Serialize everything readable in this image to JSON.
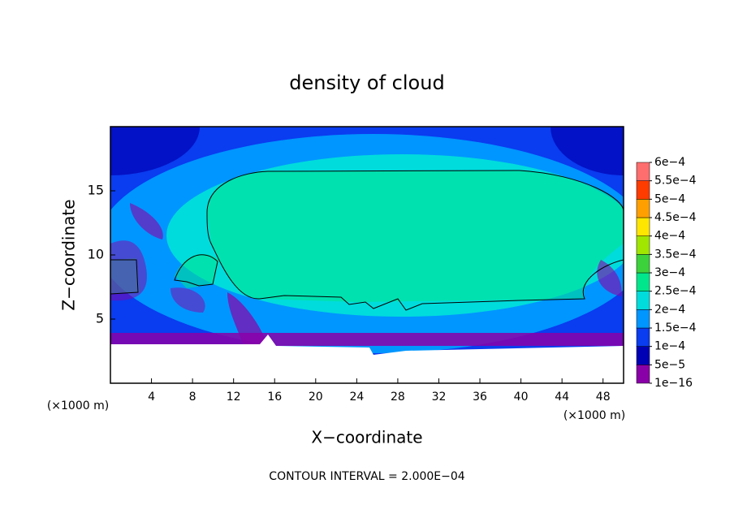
{
  "chart_data": {
    "type": "contour",
    "title": "density of cloud",
    "xlabel": "X−coordinate",
    "ylabel": "Z−coordinate",
    "x_unit": "(×1000 m)",
    "y_unit": "(×1000 m)",
    "annotation": "CONTOUR INTERVAL = 2.000E−04",
    "xlim": [
      0,
      50
    ],
    "ylim": [
      0,
      20
    ],
    "xticks": [
      4,
      8,
      12,
      16,
      20,
      24,
      28,
      32,
      36,
      40,
      44,
      48
    ],
    "yticks": [
      5,
      10,
      15
    ],
    "colorbar": {
      "ticks": [
        {
          "value": 1e-16,
          "label": "1e−16"
        },
        {
          "value": 5e-05,
          "label": "5e−5"
        },
        {
          "value": 0.0001,
          "label": "1e−4"
        },
        {
          "value": 0.00015,
          "label": "1.5e−4"
        },
        {
          "value": 0.0002,
          "label": "2e−4"
        },
        {
          "value": 0.00025,
          "label": "2.5e−4"
        },
        {
          "value": 0.0003,
          "label": "3e−4"
        },
        {
          "value": 0.00035,
          "label": "3.5e−4"
        },
        {
          "value": 0.0004,
          "label": "4e−4"
        },
        {
          "value": 0.00045,
          "label": "4.5e−4"
        },
        {
          "value": 0.0005,
          "label": "5e−4"
        },
        {
          "value": 0.00055,
          "label": "5.5e−4"
        },
        {
          "value": 0.0006,
          "label": "6e−4"
        }
      ],
      "colors": [
        "#8a00a8",
        "#0000b4",
        "#0a3cf0",
        "#0096ff",
        "#00dcdc",
        "#00e68c",
        "#3cd23c",
        "#a0e600",
        "#ffe600",
        "#ffa000",
        "#ff3c00",
        "#ff6e6e"
      ]
    }
  }
}
